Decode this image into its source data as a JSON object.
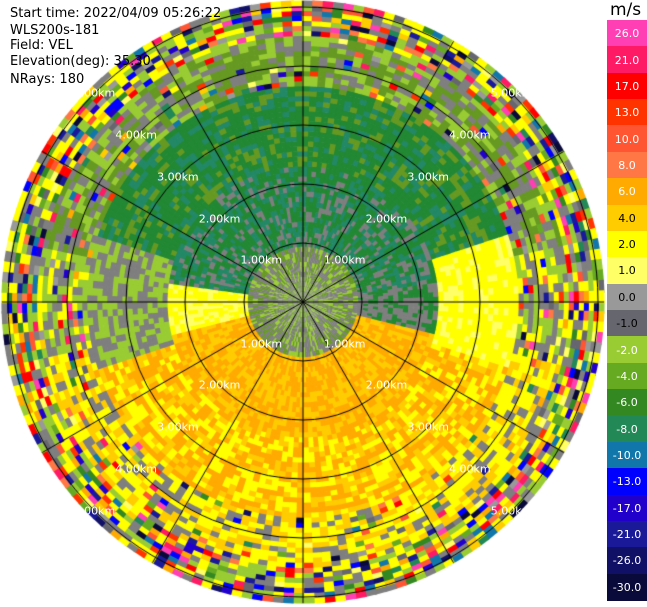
{
  "header": {
    "start_time": "Start time: 2022/04/09 05:26:22",
    "instrument": "WLS200s-181",
    "field": "Field: VEL",
    "elevation": "Elevation(deg): 35.30",
    "nrays": "NRays: 180"
  },
  "colorbar": {
    "unit": "m/s",
    "ticks": [
      "26.0",
      "21.0",
      "17.0",
      "13.0",
      "10.0",
      "8.0",
      "6.0",
      "4.0",
      "2.0",
      "1.0",
      "0.0",
      "-1.0",
      "-2.0",
      "-4.0",
      "-6.0",
      "-8.0",
      "-10.0",
      "-13.0",
      "-17.0",
      "-21.0",
      "-26.0",
      "-30.0"
    ],
    "colors": [
      "#ff3fb3",
      "#ff1a66",
      "#ff0000",
      "#ff3300",
      "#ff5533",
      "#ff7744",
      "#ffaa00",
      "#ffcc00",
      "#ffff00",
      "#ffff66",
      "#999999",
      "#66666f",
      "#99cc33",
      "#66aa22",
      "#338822",
      "#228855",
      "#1177aa",
      "#0000ff",
      "#2200cc",
      "#1a1a99",
      "#101066",
      "#0a0a3a"
    ]
  },
  "range_rings": {
    "labels": [
      "1.00km",
      "2.00km",
      "3.00km",
      "4.00km",
      "5.00km"
    ]
  },
  "palette": {
    "yellow": "#ffff00",
    "light_yellow": "#ffff66",
    "orange": "#ffaa00",
    "gold": "#ffcc00",
    "gray": "#7f7f7f",
    "light_green": "#99cc33",
    "olive": "#669922",
    "dark_green": "#228833",
    "teal": "#228866"
  }
}
